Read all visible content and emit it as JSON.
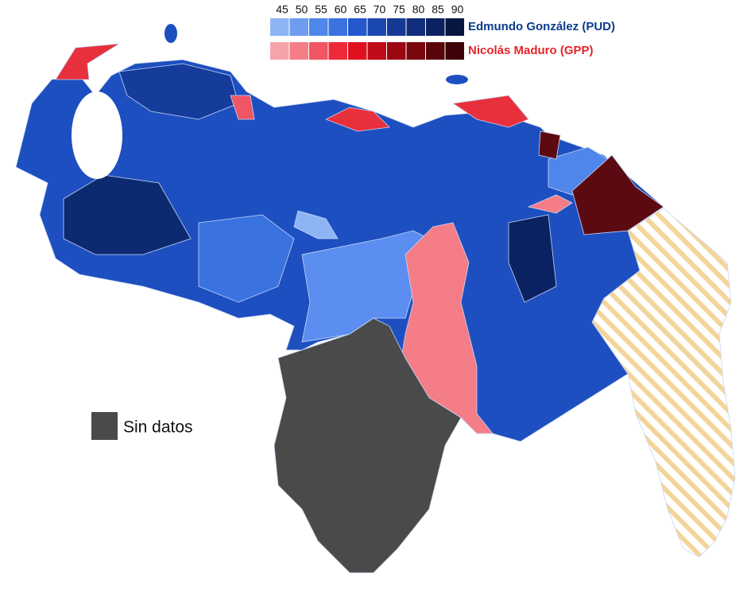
{
  "legend": {
    "scale": [
      45,
      50,
      55,
      60,
      65,
      70,
      75,
      80,
      85,
      90
    ],
    "parties": [
      {
        "name": "Edmundo González (PUD)",
        "color": "#0d3b8c",
        "swatches": [
          "#8db4f5",
          "#6d9cf0",
          "#4f86ea",
          "#3a72e0",
          "#2458cc",
          "#1b48b0",
          "#153a96",
          "#102e7c",
          "#0b2262",
          "#06163f"
        ]
      },
      {
        "name": "Nicolás Maduro (GPP)",
        "color": "#e3242b",
        "swatches": [
          "#f7a3ab",
          "#f47d88",
          "#f05563",
          "#ee2a3a",
          "#e0101f",
          "#bf0a18",
          "#9c0812",
          "#7a060e",
          "#5a040b",
          "#3c0207"
        ]
      }
    ]
  },
  "no_data": {
    "label": "Sin datos",
    "color": "#4a4a4a"
  }
}
